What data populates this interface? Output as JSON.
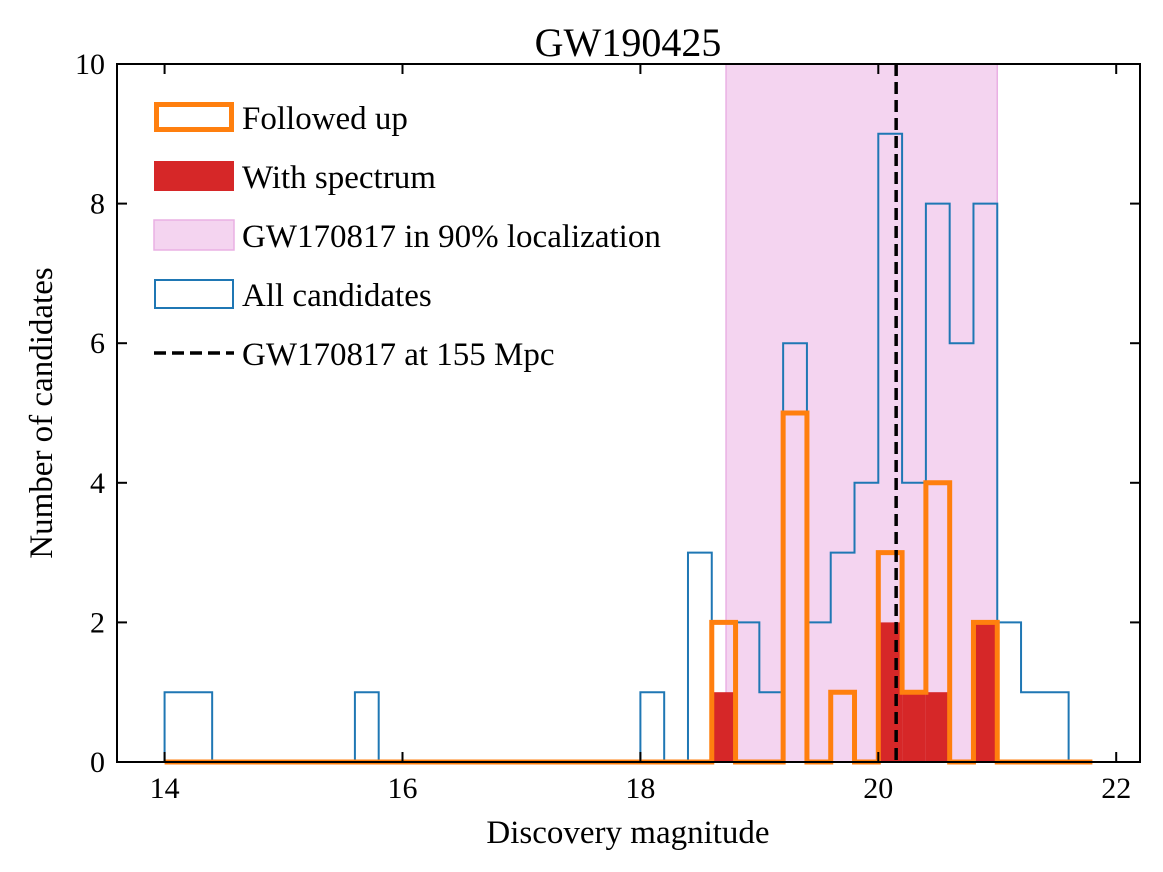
{
  "chart_data": {
    "type": "histogram",
    "title": "GW190425",
    "xlabel": "Discovery magnitude",
    "ylabel": "Number of candidates",
    "xlim": [
      13.6,
      22.2
    ],
    "ylim": [
      0,
      10
    ],
    "xticks": [
      14,
      16,
      18,
      20,
      22
    ],
    "yticks": [
      0,
      2,
      4,
      6,
      8,
      10
    ],
    "bins": [
      14.0,
      14.2,
      14.4,
      14.6,
      14.8,
      15.0,
      15.2,
      15.4,
      15.6,
      15.8,
      16.0,
      16.2,
      16.4,
      16.6,
      16.8,
      17.0,
      17.2,
      17.4,
      17.6,
      17.8,
      18.0,
      18.2,
      18.4,
      18.6,
      18.8,
      19.0,
      19.2,
      19.4,
      19.6,
      19.8,
      20.0,
      20.2,
      20.4,
      20.6,
      20.8,
      21.0,
      21.2,
      21.4,
      21.6,
      21.8
    ],
    "series": [
      {
        "name": "All candidates",
        "style": "step",
        "color": "#1f77b4",
        "counts": [
          1,
          1,
          0,
          0,
          0,
          0,
          0,
          0,
          1,
          0,
          0,
          0,
          0,
          0,
          0,
          0,
          0,
          0,
          0,
          0,
          1,
          0,
          3,
          2,
          2,
          1,
          6,
          2,
          3,
          4,
          9,
          4,
          8,
          6,
          8,
          2,
          1,
          1,
          0
        ]
      },
      {
        "name": "Followed up",
        "style": "step",
        "color": "#ff7f0e",
        "counts": [
          0,
          0,
          0,
          0,
          0,
          0,
          0,
          0,
          0,
          0,
          0,
          0,
          0,
          0,
          0,
          0,
          0,
          0,
          0,
          0,
          0,
          0,
          0,
          2,
          0,
          0,
          5,
          0,
          1,
          0,
          3,
          1,
          4,
          0,
          2,
          0,
          0,
          0,
          0
        ]
      },
      {
        "name": "With spectrum",
        "style": "filled",
        "color": "#d62728",
        "counts": [
          0,
          0,
          0,
          0,
          0,
          0,
          0,
          0,
          0,
          0,
          0,
          0,
          0,
          0,
          0,
          0,
          0,
          0,
          0,
          0,
          0,
          0,
          0,
          1,
          0,
          0,
          0,
          0,
          0,
          0,
          2,
          1,
          1,
          0,
          2,
          0,
          0,
          0,
          0
        ]
      }
    ],
    "span": {
      "name": "GW170817 in 90% localization",
      "range": [
        18.72,
        21.0
      ],
      "color": "#f4d4f0",
      "edge_color": "#eab0e4"
    },
    "vline": {
      "name": "GW170817 at 155 Mpc",
      "x": 20.15,
      "color": "#000000"
    },
    "legend": [
      {
        "label": "Followed up",
        "kind": "outline",
        "color": "#ff7f0e"
      },
      {
        "label": "With spectrum",
        "kind": "fill",
        "color": "#d62728"
      },
      {
        "label": "GW170817 in 90% localization",
        "kind": "span",
        "color": "#f4d4f0"
      },
      {
        "label": "All candidates",
        "kind": "thin-outline",
        "color": "#1f77b4"
      },
      {
        "label": "GW170817 at 155 Mpc",
        "kind": "dashed",
        "color": "#000000"
      }
    ],
    "legend_position": "upper-left"
  }
}
